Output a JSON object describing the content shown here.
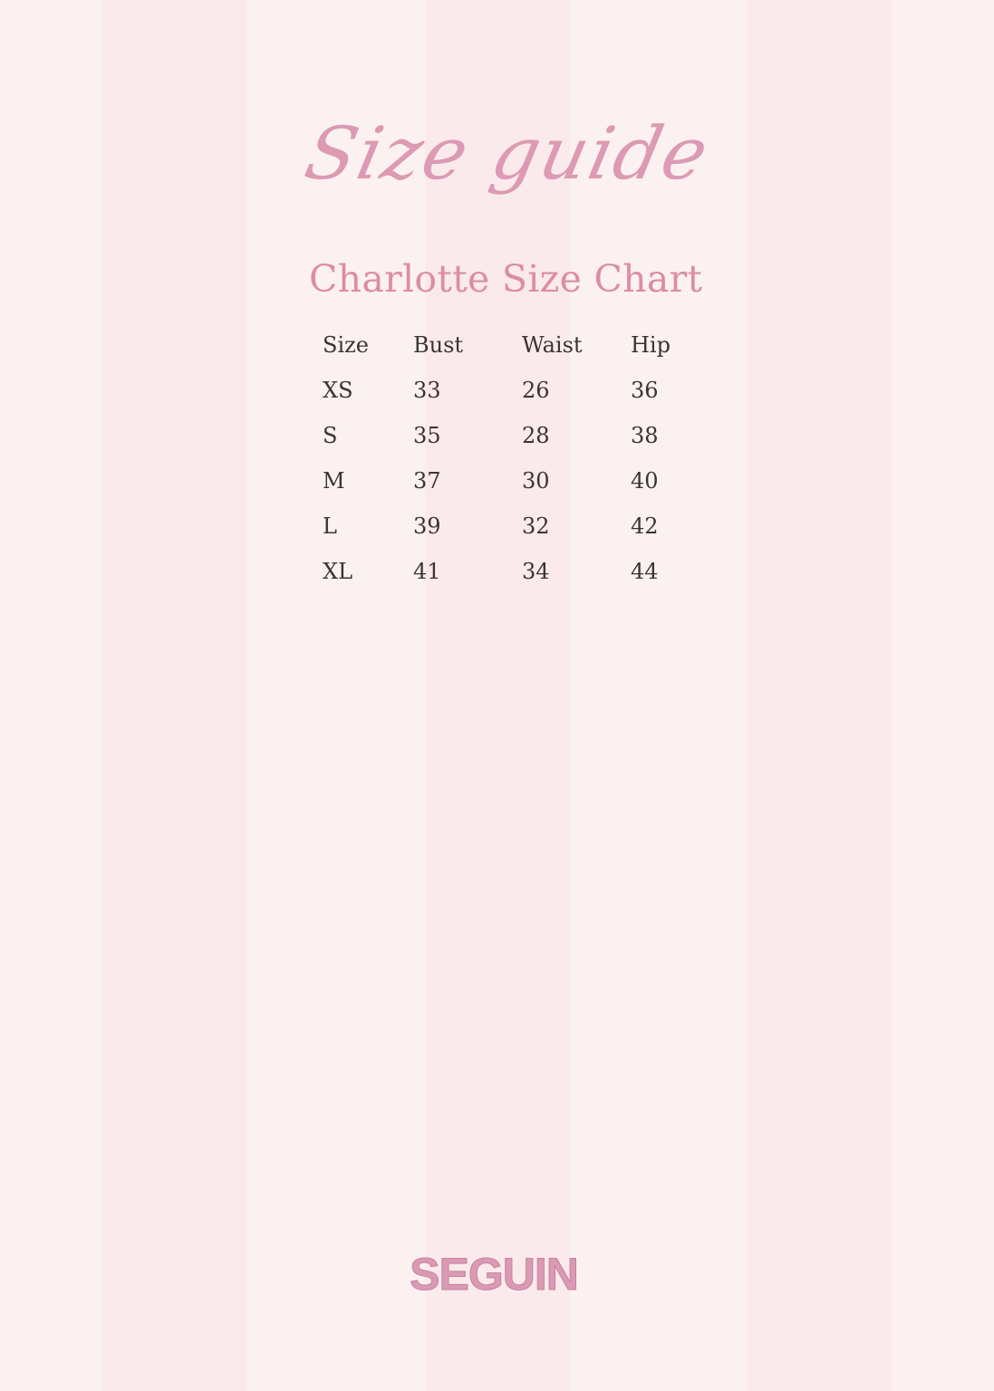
{
  "heading_script": "Size guide",
  "title": "Charlotte Size Chart",
  "table": {
    "headers": [
      "Size",
      "Bust",
      "Waist",
      "Hip"
    ],
    "rows": [
      [
        "XS",
        "33",
        "26",
        "36"
      ],
      [
        "S",
        "35",
        "28",
        "38"
      ],
      [
        "M",
        "37",
        "30",
        "40"
      ],
      [
        "L",
        "39",
        "32",
        "42"
      ],
      [
        "XL",
        "41",
        "34",
        "44"
      ]
    ]
  },
  "brand": "SEGUIN",
  "colors": {
    "background": "#fcf1f1",
    "stripe": "#f9e7e9",
    "accent_pink": "#dc8ca6",
    "text": "#3a3334"
  }
}
